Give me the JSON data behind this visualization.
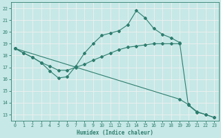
{
  "xlabel": "Humidex (Indice chaleur)",
  "xlim": [
    -0.5,
    23.5
  ],
  "ylim": [
    12.5,
    22.5
  ],
  "yticks": [
    13,
    14,
    15,
    16,
    17,
    18,
    19,
    20,
    21,
    22
  ],
  "xticks": [
    0,
    1,
    2,
    3,
    4,
    5,
    6,
    7,
    8,
    9,
    10,
    11,
    12,
    13,
    14,
    15,
    16,
    17,
    18,
    19,
    20,
    21,
    22,
    23
  ],
  "background_color": "#c6e8e6",
  "grid_color": "#f0f0f0",
  "line_color": "#2e7d6e",
  "line1_x": [
    0,
    1,
    2,
    3,
    4,
    5,
    6,
    7,
    8,
    9,
    10,
    11,
    12,
    13,
    14,
    15,
    16,
    17,
    18,
    19
  ],
  "line1_y": [
    18.6,
    18.2,
    17.85,
    17.4,
    17.1,
    16.75,
    16.75,
    17.0,
    17.25,
    17.6,
    17.9,
    18.2,
    18.5,
    18.7,
    18.8,
    18.9,
    19.0,
    19.0,
    19.0,
    19.0
  ],
  "line2_x": [
    0,
    1,
    2,
    3,
    4,
    5,
    6,
    7,
    8,
    9,
    10,
    11,
    12,
    13,
    14,
    15,
    16,
    17,
    18,
    19,
    20,
    21,
    22,
    23
  ],
  "line2_y": [
    18.6,
    18.2,
    17.85,
    17.4,
    16.7,
    16.1,
    16.2,
    17.1,
    18.2,
    19.0,
    19.7,
    19.9,
    20.1,
    20.6,
    21.8,
    21.2,
    20.3,
    19.8,
    19.5,
    19.1,
    13.8,
    13.2,
    13.0,
    12.75
  ],
  "line3_x": [
    0,
    19,
    20,
    21,
    22,
    23
  ],
  "line3_y": [
    18.6,
    14.3,
    13.85,
    13.25,
    13.0,
    12.75
  ]
}
